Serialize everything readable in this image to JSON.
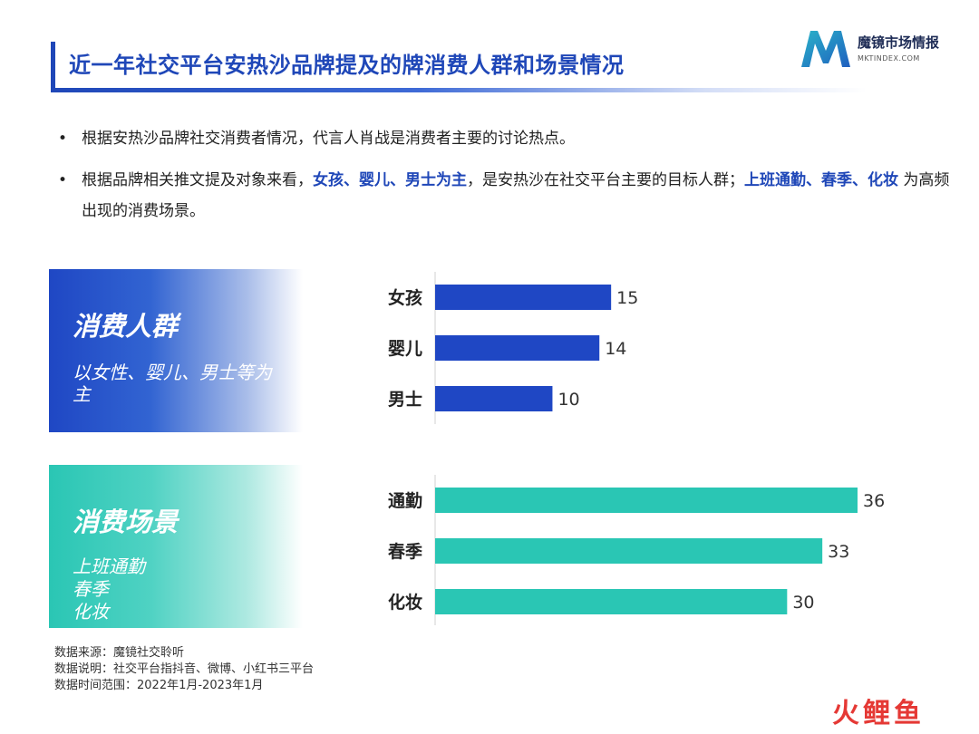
{
  "title": "近一年社交平台安热沙品牌提及的牌消费人群和场景情况",
  "logo": {
    "cn": "魔镜市场情报",
    "en": "MKTINDEX.COM"
  },
  "bullets": {
    "b1": "根据安热沙品牌社交消费者情况，代言人肖战是消费者主要的讨论热点。",
    "b2_pre": "根据品牌相关推文提及对象来看，",
    "b2_hl1": "女孩、婴儿、男士为主",
    "b2_mid": "，是安热沙在社交平台主要的目标人群；",
    "b2_hl2": "上班通勤、春季、化妆",
    "b2_post": " 为高频出现的消费场景。"
  },
  "panels": {
    "people": {
      "title": "消费人群",
      "desc": "以女性、婴儿、男士等为主"
    },
    "scene": {
      "title": "消费场景",
      "desc_lines": [
        "上班通勤",
        "春季",
        "化妆"
      ]
    }
  },
  "colors": {
    "blue": "#1f47c4",
    "teal": "#2ac6b4",
    "title": "#1f47b8"
  },
  "chart_data": [
    {
      "type": "bar",
      "orientation": "horizontal",
      "categories": [
        "女孩",
        "婴儿",
        "男士"
      ],
      "values": [
        15,
        14,
        10
      ],
      "color": "#1f47c4"
    },
    {
      "type": "bar",
      "orientation": "horizontal",
      "categories": [
        "通勤",
        "春季",
        "化妆"
      ],
      "values": [
        36,
        33,
        30
      ],
      "color": "#2ac6b4"
    }
  ],
  "footer": {
    "source": "数据来源：魔镜社交聆听",
    "note": "数据说明：社交平台指抖音、微博、小红书三平台",
    "range": "数据时间范围：2022年1月-2023年1月"
  },
  "watermark": "火鲤鱼"
}
